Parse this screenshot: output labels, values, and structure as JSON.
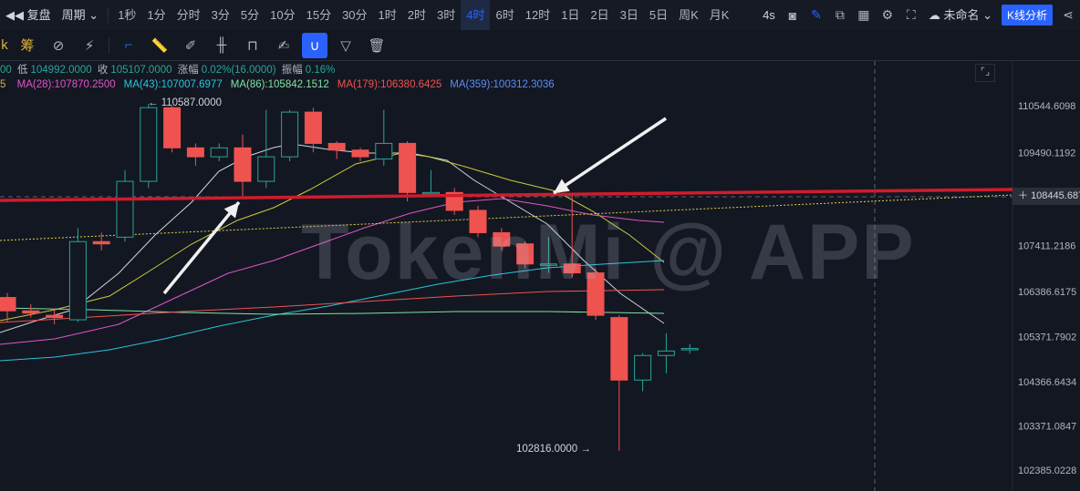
{
  "toolbar": {
    "replay_label": "复盘",
    "period_label": "周期",
    "intervals": [
      "1秒",
      "1分",
      "分时",
      "3分",
      "5分",
      "10分",
      "15分",
      "30分",
      "1时",
      "2时",
      "3时",
      "4时",
      "6时",
      "12时",
      "1日",
      "2日",
      "3日",
      "5日",
      "周K",
      "月K"
    ],
    "active_interval": "4时",
    "refresh_label": "4s",
    "cloud_label": "未命名",
    "kline_button": "K线分析"
  },
  "toolbar2": {
    "chou_label": "筹",
    "partial_left": "k"
  },
  "legend": {
    "ohlc_partial_open": "00",
    "low_label": "低",
    "low_value": "104992.0000",
    "close_label": "收",
    "close_value": "105107.0000",
    "change_label": "涨幅",
    "change_value": "0.02%(16.0000)",
    "amplitude_label": "振幅",
    "amplitude_value": "0.16%",
    "ma_partial": "5",
    "ma": [
      {
        "label": "MA(28):107870.2500",
        "color": "#e056c8"
      },
      {
        "label": "MA(43):107007.6977",
        "color": "#26c6da"
      },
      {
        "label": "MA(86):105842.1512",
        "color": "#80e0a0"
      },
      {
        "label": "MA(179):106380.6425",
        "color": "#ef5350"
      },
      {
        "label": "MA(359):100312.3036",
        "color": "#5c8ef0"
      }
    ]
  },
  "annotations": {
    "high": "← 110587.0000",
    "low": "102816.0000 →",
    "watermark": "TokenMi @ APP",
    "current_price": "108445.6874"
  },
  "chart_data": {
    "type": "candlestick",
    "y_axis_ticks": [
      110544.6098,
      109490.1192,
      108445.6874,
      107411.2186,
      106386.6175,
      105371.7902,
      104366.6434,
      103371.0847,
      102385.0228
    ],
    "y_axis_labels": [
      "110544.6098",
      "109490.1192",
      "108445.6874",
      "107411.2186",
      "106386.6175",
      "105371.7902",
      "104366.6434",
      "103371.0847",
      "102385.0228"
    ],
    "high_price": 110587.0,
    "low_price": 102816.0,
    "candles": [
      {
        "o": 106250,
        "c": 105950,
        "h": 106350,
        "l": 105700
      },
      {
        "o": 105950,
        "c": 105900,
        "h": 106100,
        "l": 105800
      },
      {
        "o": 105850,
        "c": 105800,
        "h": 106000,
        "l": 105650
      },
      {
        "o": 105750,
        "c": 107500,
        "h": 107800,
        "l": 105700
      },
      {
        "o": 107500,
        "c": 107450,
        "h": 107700,
        "l": 107300
      },
      {
        "o": 107600,
        "c": 108850,
        "h": 109100,
        "l": 107500
      },
      {
        "o": 108850,
        "c": 110500,
        "h": 110587,
        "l": 108700
      },
      {
        "o": 110500,
        "c": 109600,
        "h": 110550,
        "l": 109500
      },
      {
        "o": 109600,
        "c": 109400,
        "h": 109700,
        "l": 109200
      },
      {
        "o": 109400,
        "c": 109600,
        "h": 109700,
        "l": 109300
      },
      {
        "o": 109600,
        "c": 108850,
        "h": 109900,
        "l": 108500
      },
      {
        "o": 108850,
        "c": 109400,
        "h": 110450,
        "l": 108700
      },
      {
        "o": 109400,
        "c": 110400,
        "h": 110450,
        "l": 109300
      },
      {
        "o": 110400,
        "c": 109700,
        "h": 110500,
        "l": 109500
      },
      {
        "o": 109700,
        "c": 109550,
        "h": 109750,
        "l": 109350
      },
      {
        "o": 109550,
        "c": 109400,
        "h": 109600,
        "l": 109300
      },
      {
        "o": 109350,
        "c": 109700,
        "h": 110450,
        "l": 109200
      },
      {
        "o": 109700,
        "c": 108600,
        "h": 109750,
        "l": 108400
      },
      {
        "o": 108600,
        "c": 108600,
        "h": 109100,
        "l": 108500
      },
      {
        "o": 108600,
        "c": 108200,
        "h": 108700,
        "l": 108100
      },
      {
        "o": 108200,
        "c": 107700,
        "h": 108300,
        "l": 107600
      },
      {
        "o": 107700,
        "c": 107400,
        "h": 107800,
        "l": 107300
      },
      {
        "o": 107450,
        "c": 107000,
        "h": 107500,
        "l": 106900
      },
      {
        "o": 107000,
        "c": 107000,
        "h": 107600,
        "l": 106800
      },
      {
        "o": 107000,
        "c": 106800,
        "h": 108600,
        "l": 106700
      },
      {
        "o": 106800,
        "c": 105850,
        "h": 106900,
        "l": 105750
      },
      {
        "o": 105800,
        "c": 104400,
        "h": 105850,
        "l": 102816
      },
      {
        "o": 104400,
        "c": 104950,
        "h": 105000,
        "l": 104150
      },
      {
        "o": 104950,
        "c": 105050,
        "h": 105450,
        "l": 104550
      },
      {
        "o": 105100,
        "c": 105107,
        "h": 105200,
        "l": 104992
      }
    ]
  }
}
